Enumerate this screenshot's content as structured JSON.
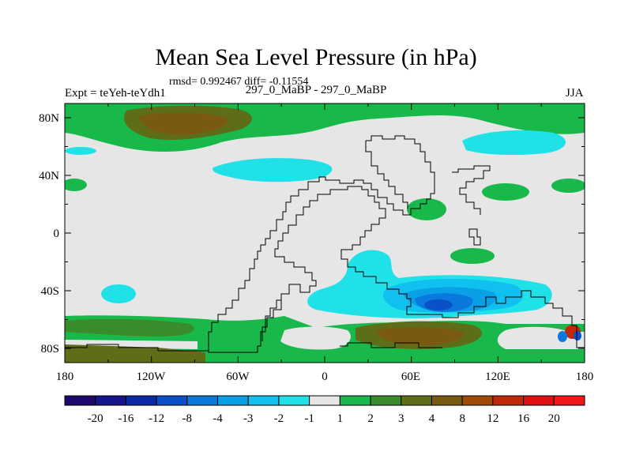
{
  "title": "Mean Sea Level Pressure (in hPa)",
  "stats": "rmsd= 0.992467 diff= -0.11554",
  "experiment": "Expt = teYeh-teYdh1",
  "comparison": "297_0_MaBP - 297_0_MaBP",
  "season": "JJA",
  "lat_ticks": [
    "80N",
    "40N",
    "0",
    "40S",
    "80S"
  ],
  "lon_ticks": [
    "180",
    "120W",
    "60W",
    "0",
    "60E",
    "120E",
    "180"
  ],
  "colorbar": {
    "labels": [
      "-20",
      "-16",
      "-12",
      "-8",
      "-4",
      "-3",
      "-2",
      "-1",
      "1",
      "2",
      "3",
      "4",
      "8",
      "12",
      "16",
      "20"
    ],
    "colors": [
      "#1e0870",
      "#14148c",
      "#0a28a8",
      "#0a50c8",
      "#0a78dc",
      "#0aa0e6",
      "#10c0f0",
      "#20e0e8",
      "#e6e6e6",
      "#18b84a",
      "#3a8c2a",
      "#5e6e18",
      "#7a5a10",
      "#a04a08",
      "#c02808",
      "#e01010",
      "#f01818"
    ]
  }
}
